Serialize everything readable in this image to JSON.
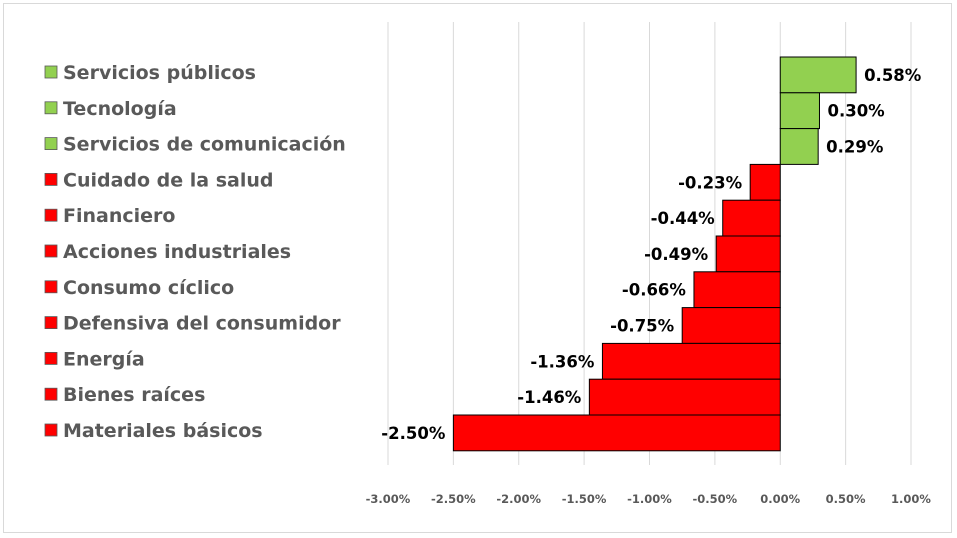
{
  "chart_data": {
    "type": "bar",
    "orientation": "horizontal",
    "categories": [
      "Servicios públicos",
      "Tecnología",
      "Servicios de comunicación",
      "Cuidado de la salud",
      "Financiero",
      "Acciones industriales",
      "Consumo cíclico",
      "Defensiva del consumidor",
      "Energía",
      "Bienes raíces",
      "Materiales básicos"
    ],
    "values": [
      0.58,
      0.3,
      0.29,
      -0.23,
      -0.44,
      -0.49,
      -0.66,
      -0.75,
      -1.36,
      -1.46,
      -2.5
    ],
    "value_labels": [
      "0.58%",
      "0.30%",
      "0.29%",
      "-0.23%",
      "-0.44%",
      "-0.49%",
      "-0.66%",
      "-0.75%",
      "-1.36%",
      "-1.46%",
      "-2.50%"
    ],
    "unit": "%",
    "xlim": [
      -3.0,
      1.0
    ],
    "x_ticks": [
      -3.0,
      -2.5,
      -2.0,
      -1.5,
      -1.0,
      -0.5,
      0.0,
      0.5,
      1.0
    ],
    "x_tick_labels": [
      "-3.00%",
      "-2.50%",
      "-2.00%",
      "-1.50%",
      "-1.00%",
      "-0.50%",
      "0.00%",
      "0.50%",
      "1.00%"
    ],
    "grid": "vertical",
    "legend": "left",
    "colors": {
      "positive": "#92d050",
      "negative": "#ff0000",
      "bar_border": "#000000",
      "grid": "#d9d9d9",
      "label_text": "#595959"
    },
    "title": "",
    "xlabel": "",
    "ylabel": ""
  }
}
